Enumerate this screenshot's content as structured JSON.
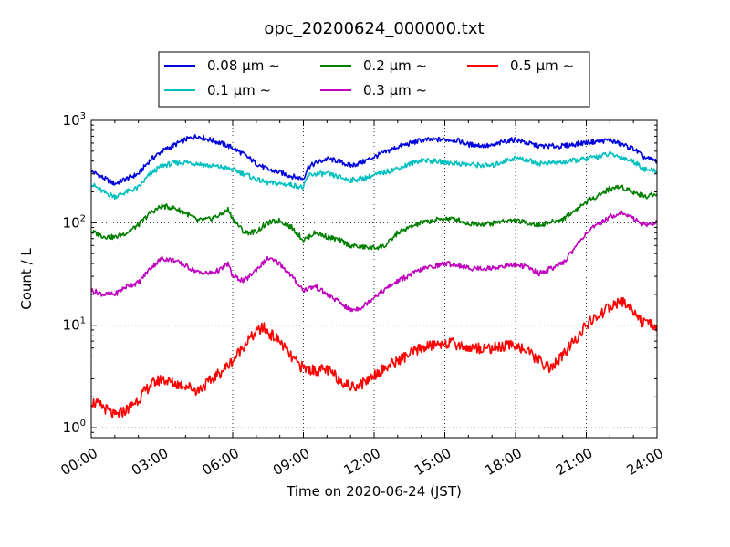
{
  "chart_data": {
    "type": "line",
    "title": "opc_20200624_000000.txt",
    "xlabel": "Time on 2020-06-24 (JST)",
    "ylabel": "Count / L",
    "x_unit": "hours",
    "xlim": [
      "00:00",
      "24:00"
    ],
    "xticks": [
      "00:00",
      "03:00",
      "06:00",
      "09:00",
      "12:00",
      "15:00",
      "18:00",
      "21:00",
      "24:00"
    ],
    "yscale": "log",
    "ylim": [
      0.8,
      1000
    ],
    "yticks": [
      {
        "value": 1,
        "base": "10",
        "exp": "0"
      },
      {
        "value": 10,
        "base": "10",
        "exp": "1"
      },
      {
        "value": 100,
        "base": "10",
        "exp": "2"
      },
      {
        "value": 1000,
        "base": "10",
        "exp": "3"
      }
    ],
    "grid": true,
    "legend_position": "top-center, above plot",
    "series": [
      {
        "name": "0.08 µm ~",
        "color": "#0000dd",
        "points": [
          [
            0,
            320
          ],
          [
            0.5,
            275
          ],
          [
            1,
            240
          ],
          [
            1.5,
            270
          ],
          [
            2,
            300
          ],
          [
            2.5,
            410
          ],
          [
            3,
            500
          ],
          [
            3.5,
            570
          ],
          [
            4,
            650
          ],
          [
            4.5,
            700
          ],
          [
            5,
            650
          ],
          [
            5.5,
            600
          ],
          [
            6,
            540
          ],
          [
            6.5,
            460
          ],
          [
            7,
            380
          ],
          [
            7.5,
            330
          ],
          [
            8,
            310
          ],
          [
            8.5,
            285
          ],
          [
            9,
            270
          ],
          [
            9.2,
            350
          ],
          [
            9.5,
            380
          ],
          [
            10,
            420
          ],
          [
            10.5,
            400
          ],
          [
            11,
            360
          ],
          [
            11.5,
            390
          ],
          [
            12,
            440
          ],
          [
            13,
            550
          ],
          [
            14,
            640
          ],
          [
            15,
            650
          ],
          [
            15.5,
            640
          ],
          [
            16,
            580
          ],
          [
            17,
            560
          ],
          [
            17.5,
            620
          ],
          [
            18,
            650
          ],
          [
            18.5,
            600
          ],
          [
            19,
            560
          ],
          [
            20,
            560
          ],
          [
            21,
            610
          ],
          [
            22,
            640
          ],
          [
            23,
            530
          ],
          [
            23.5,
            430
          ],
          [
            24,
            400
          ]
        ]
      },
      {
        "name": "0.1 µm ~",
        "color": "#00bfbf",
        "points": [
          [
            0,
            240
          ],
          [
            0.5,
            200
          ],
          [
            1,
            180
          ],
          [
            1.5,
            200
          ],
          [
            2,
            220
          ],
          [
            2.5,
            300
          ],
          [
            3,
            360
          ],
          [
            3.5,
            380
          ],
          [
            4,
            390
          ],
          [
            4.5,
            380
          ],
          [
            5,
            360
          ],
          [
            5.5,
            350
          ],
          [
            6,
            330
          ],
          [
            6.5,
            300
          ],
          [
            7,
            265
          ],
          [
            7.5,
            245
          ],
          [
            8,
            240
          ],
          [
            8.5,
            235
          ],
          [
            9,
            220
          ],
          [
            9.2,
            290
          ],
          [
            9.5,
            300
          ],
          [
            10,
            300
          ],
          [
            10.5,
            280
          ],
          [
            11,
            260
          ],
          [
            11.5,
            270
          ],
          [
            12,
            290
          ],
          [
            13,
            340
          ],
          [
            14,
            410
          ],
          [
            15,
            390
          ],
          [
            15.5,
            380
          ],
          [
            16,
            370
          ],
          [
            17,
            360
          ],
          [
            17.5,
            400
          ],
          [
            18,
            430
          ],
          [
            18.5,
            410
          ],
          [
            19,
            380
          ],
          [
            20,
            390
          ],
          [
            21,
            420
          ],
          [
            22,
            470
          ],
          [
            23,
            400
          ],
          [
            23.5,
            330
          ],
          [
            24,
            320
          ]
        ]
      },
      {
        "name": "0.2 µm ~",
        "color": "#007f00",
        "points": [
          [
            0,
            82
          ],
          [
            0.5,
            74
          ],
          [
            1,
            72
          ],
          [
            1.5,
            80
          ],
          [
            2,
            95
          ],
          [
            2.5,
            125
          ],
          [
            3,
            145
          ],
          [
            3.5,
            140
          ],
          [
            4,
            125
          ],
          [
            4.5,
            105
          ],
          [
            5,
            108
          ],
          [
            5.5,
            120
          ],
          [
            5.8,
            135
          ],
          [
            6,
            110
          ],
          [
            6.5,
            80
          ],
          [
            7,
            82
          ],
          [
            7.5,
            100
          ],
          [
            8,
            105
          ],
          [
            8.5,
            90
          ],
          [
            9,
            68
          ],
          [
            9.5,
            80
          ],
          [
            10,
            73
          ],
          [
            10.5,
            68
          ],
          [
            11,
            60
          ],
          [
            11.5,
            58
          ],
          [
            12,
            57
          ],
          [
            12.5,
            60
          ],
          [
            13,
            80
          ],
          [
            14,
            100
          ],
          [
            15,
            110
          ],
          [
            15.5,
            108
          ],
          [
            16,
            98
          ],
          [
            17,
            98
          ],
          [
            17.5,
            105
          ],
          [
            18,
            105
          ],
          [
            18.5,
            100
          ],
          [
            19,
            95
          ],
          [
            20,
            108
          ],
          [
            21,
            160
          ],
          [
            22,
            215
          ],
          [
            22.5,
            225
          ],
          [
            23,
            200
          ],
          [
            23.5,
            180
          ],
          [
            24,
            195
          ]
        ]
      },
      {
        "name": "0.3 µm ~",
        "color": "#bf00bf",
        "points": [
          [
            0,
            22
          ],
          [
            0.5,
            20
          ],
          [
            1,
            20
          ],
          [
            1.5,
            24
          ],
          [
            2,
            26
          ],
          [
            2.5,
            36
          ],
          [
            3,
            45
          ],
          [
            3.5,
            43
          ],
          [
            4,
            38
          ],
          [
            4.5,
            33
          ],
          [
            5,
            32
          ],
          [
            5.5,
            35
          ],
          [
            5.8,
            40
          ],
          [
            6,
            30
          ],
          [
            6.5,
            27
          ],
          [
            7,
            35
          ],
          [
            7.5,
            45
          ],
          [
            8,
            40
          ],
          [
            8.5,
            30
          ],
          [
            9,
            22
          ],
          [
            9.5,
            24
          ],
          [
            10,
            20
          ],
          [
            10.5,
            17
          ],
          [
            11,
            14
          ],
          [
            11.5,
            15
          ],
          [
            12,
            19
          ],
          [
            13,
            27
          ],
          [
            14,
            35
          ],
          [
            15,
            40
          ],
          [
            15.5,
            39
          ],
          [
            16,
            36
          ],
          [
            17,
            36
          ],
          [
            17.5,
            38
          ],
          [
            18,
            39
          ],
          [
            18.5,
            37
          ],
          [
            19,
            32
          ],
          [
            20,
            40
          ],
          [
            21,
            80
          ],
          [
            22,
            115
          ],
          [
            22.5,
            125
          ],
          [
            23,
            110
          ],
          [
            23.5,
            95
          ],
          [
            24,
            100
          ]
        ]
      },
      {
        "name": "0.5 µm ~",
        "color": "#ff0000",
        "points": [
          [
            0,
            1.8
          ],
          [
            0.5,
            1.6
          ],
          [
            1,
            1.3
          ],
          [
            1.5,
            1.5
          ],
          [
            2,
            1.9
          ],
          [
            2.5,
            2.6
          ],
          [
            3,
            3.0
          ],
          [
            3.5,
            2.7
          ],
          [
            4,
            2.6
          ],
          [
            4.5,
            2.3
          ],
          [
            5,
            2.8
          ],
          [
            5.5,
            3.5
          ],
          [
            6,
            4.5
          ],
          [
            6.5,
            6.5
          ],
          [
            7,
            8.5
          ],
          [
            7.3,
            9.5
          ],
          [
            7.5,
            8.5
          ],
          [
            8,
            7.0
          ],
          [
            8.5,
            4.8
          ],
          [
            9,
            3.8
          ],
          [
            9.5,
            3.6
          ],
          [
            10,
            3.7
          ],
          [
            10.5,
            3.0
          ],
          [
            11,
            2.5
          ],
          [
            11.5,
            2.7
          ],
          [
            12,
            3.3
          ],
          [
            13,
            4.5
          ],
          [
            14,
            6.0
          ],
          [
            15,
            6.8
          ],
          [
            15.5,
            6.5
          ],
          [
            16,
            6.0
          ],
          [
            17,
            6.0
          ],
          [
            17.5,
            6.2
          ],
          [
            18,
            6.5
          ],
          [
            18.5,
            5.5
          ],
          [
            19,
            4.5
          ],
          [
            19.5,
            3.8
          ],
          [
            20,
            5.0
          ],
          [
            21,
            10
          ],
          [
            22,
            15
          ],
          [
            22.5,
            17
          ],
          [
            23,
            14
          ],
          [
            23.5,
            10
          ],
          [
            24,
            10
          ]
        ]
      }
    ]
  }
}
